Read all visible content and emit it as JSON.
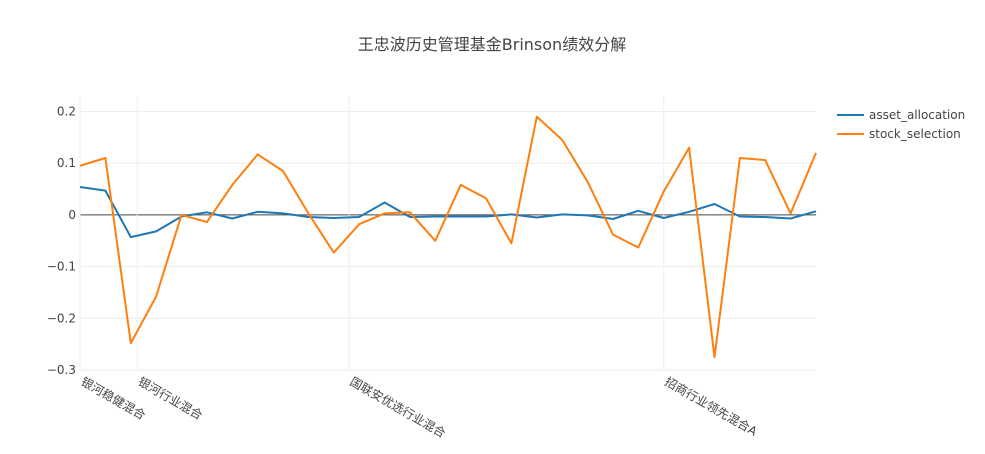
{
  "chart_data": {
    "type": "line",
    "title": "王忠波历史管理基金Brinson绩效分解",
    "xlabel": "",
    "ylabel": "",
    "ylim": [
      -0.3,
      0.23
    ],
    "yticks": [
      -0.3,
      -0.2,
      -0.1,
      0,
      0.1,
      0.2
    ],
    "ytick_labels": [
      "−0.3",
      "−0.2",
      "−0.1",
      "0",
      "0.1",
      "0.2"
    ],
    "x_tick_labels": [
      {
        "index": 0,
        "label": "银河稳健混合"
      },
      {
        "index": 2.25,
        "label": "银河行业混合"
      },
      {
        "index": 10.6,
        "label": "国联安优选行业混合"
      },
      {
        "index": 23,
        "label": "招商行业领先混合A"
      }
    ],
    "grid": true,
    "legend_position": "top-right",
    "series": [
      {
        "name": "asset_allocation",
        "color": "#1f77b4",
        "values": [
          0.054,
          0.047,
          -0.043,
          -0.032,
          -0.003,
          0.005,
          -0.007,
          0.006,
          0.003,
          -0.004,
          -0.006,
          -0.004,
          0.024,
          -0.004,
          -0.003,
          -0.003,
          -0.003,
          0.001,
          -0.005,
          0.001,
          -0.001,
          -0.008,
          0.008,
          -0.006,
          0.006,
          0.021,
          -0.003,
          -0.004,
          -0.007,
          0.007
        ]
      },
      {
        "name": "stock_selection",
        "color": "#ff7f0e",
        "values": [
          0.095,
          0.11,
          -0.248,
          -0.158,
          0.0,
          -0.014,
          0.058,
          0.117,
          0.085,
          0.003,
          -0.073,
          -0.018,
          0.003,
          0.005,
          -0.05,
          0.058,
          0.032,
          -0.055,
          0.19,
          0.145,
          0.064,
          -0.038,
          -0.063,
          0.045,
          0.13,
          -0.275,
          0.11,
          0.106,
          0.003,
          0.12
        ]
      }
    ]
  }
}
